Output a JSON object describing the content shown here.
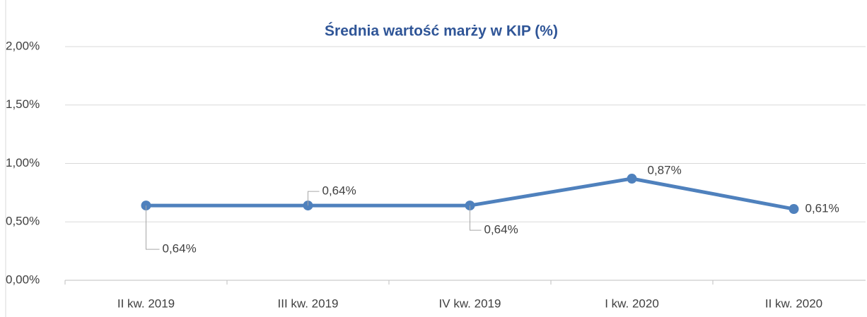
{
  "chart_data": {
    "type": "line",
    "title": "Średnia wartość marży w KIP (%)",
    "categories": [
      "II kw. 2019",
      "III kw. 2019",
      "IV kw. 2019",
      "I kw. 2020",
      "II kw. 2020"
    ],
    "series": [
      {
        "name": "Średnia wartość marży w KIP (%)",
        "color": "#4f81bd",
        "values": [
          0.64,
          0.64,
          0.64,
          0.87,
          0.61
        ],
        "value_labels": [
          "0,64%",
          "0,64%",
          "0,64%",
          "0,87%",
          "0,61%"
        ]
      }
    ],
    "ylim": [
      0,
      2
    ],
    "yticks": [
      {
        "value": 0,
        "label": "0,00%"
      },
      {
        "value": 0.5,
        "label": "0,50%"
      },
      {
        "value": 1,
        "label": "1,00%"
      },
      {
        "value": 1.5,
        "label": "1,50%"
      },
      {
        "value": 2,
        "label": "2,00%"
      }
    ],
    "grid": true
  }
}
